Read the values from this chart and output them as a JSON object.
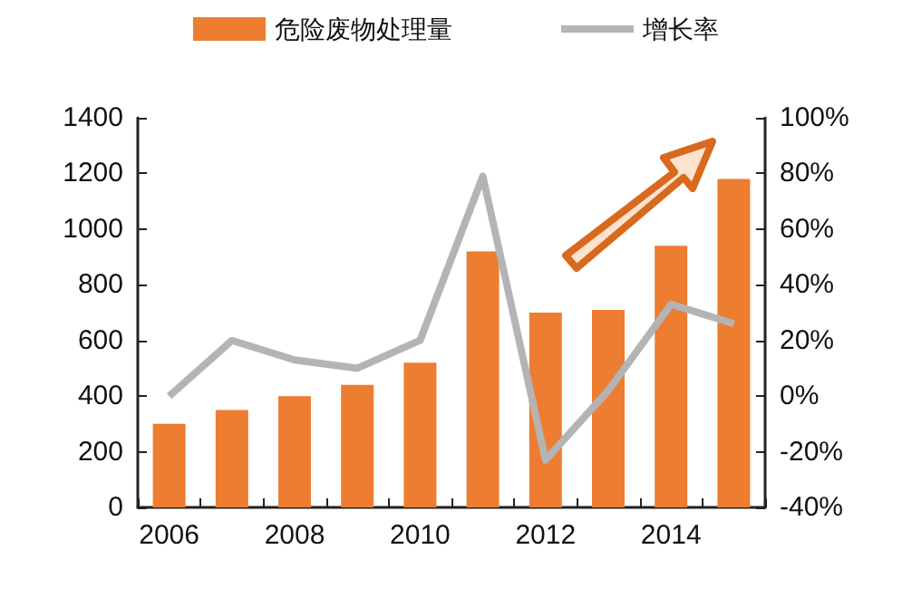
{
  "chart_data": {
    "type": "bar",
    "categories": [
      "2006",
      null,
      "2008",
      null,
      "2010",
      null,
      "2012",
      null,
      "2014",
      null
    ],
    "series": [
      {
        "name": "危险废物处理量",
        "color": "#ed7d31",
        "values": [
          300,
          350,
          400,
          440,
          520,
          920,
          700,
          710,
          940,
          1180
        ]
      },
      {
        "name": "增长率",
        "type": "line",
        "axis": "y2",
        "color": "#b4b4b4",
        "values": [
          0,
          20,
          13,
          10,
          20,
          79,
          -23,
          2,
          33,
          26
        ]
      }
    ],
    "ylim": [
      0,
      1400
    ],
    "yticks": [
      0,
      200,
      400,
      600,
      800,
      1000,
      1200,
      1400
    ],
    "y2lim": [
      -40,
      100
    ],
    "y2ticks": [
      {
        "value": -40,
        "label": "-40%"
      },
      {
        "value": -20,
        "label": "-20%"
      },
      {
        "value": 0,
        "label": "0%"
      },
      {
        "value": 20,
        "label": "20%"
      },
      {
        "value": 40,
        "label": "40%"
      },
      {
        "value": 60,
        "label": "60%"
      },
      {
        "value": 80,
        "label": "80%"
      },
      {
        "value": 100,
        "label": "100%"
      }
    ],
    "legend": "top",
    "marker": "none",
    "grid": false
  }
}
